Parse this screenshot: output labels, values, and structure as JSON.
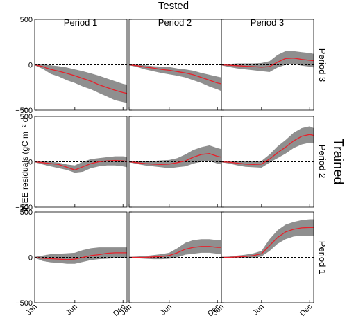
{
  "figure": {
    "top_title": "Tested",
    "side_title": "Trained",
    "ylabel": "iNEE residuals (gC m⁻² d⁻¹)",
    "column_titles": [
      "Period 1",
      "Period 2",
      "Period 3"
    ],
    "row_titles": [
      "Period 3",
      "Period 2",
      "Period 1"
    ],
    "y_tick_labels": [
      "500",
      "0",
      "−500"
    ],
    "x_tick_labels": [
      "Jan",
      "Jun",
      "Dec"
    ],
    "colors": {
      "band": "#8f8f8f",
      "line": "#e8202a",
      "zero": "#000000",
      "frame": "#000000"
    }
  },
  "chart_data": {
    "type": "area",
    "description_units": "x = month of year, y = iNEE residual; mean line with shaded spread band",
    "ylim": [
      -500,
      500
    ],
    "xlim": [
      1,
      12.5
    ],
    "x": [
      1,
      2,
      3,
      4,
      5,
      6,
      7,
      8,
      9,
      10,
      11,
      12,
      12.5
    ],
    "panels": [
      {
        "row": "Period 3",
        "col": "Period 1",
        "mean": [
          0,
          -20,
          -50,
          -70,
          -95,
          -120,
          -150,
          -180,
          -220,
          -250,
          -280,
          -305,
          -315
        ],
        "upper": [
          5,
          5,
          -5,
          -15,
          -30,
          -50,
          -70,
          -95,
          -120,
          -150,
          -180,
          -210,
          -220
        ],
        "lower": [
          -5,
          -45,
          -100,
          -130,
          -170,
          -200,
          -240,
          -270,
          -310,
          -350,
          -390,
          -410,
          -420
        ]
      },
      {
        "row": "Period 3",
        "col": "Period 2",
        "mean": [
          0,
          -10,
          -25,
          -35,
          -50,
          -60,
          -75,
          -90,
          -110,
          -140,
          -170,
          -200,
          -210
        ],
        "upper": [
          5,
          0,
          -5,
          -15,
          -20,
          -25,
          -40,
          -50,
          -65,
          -90,
          -110,
          -130,
          -140
        ],
        "lower": [
          -5,
          -25,
          -50,
          -70,
          -90,
          -105,
          -120,
          -140,
          -170,
          -200,
          -240,
          -270,
          -290
        ]
      },
      {
        "row": "Period 3",
        "col": "Period 3",
        "mean": [
          0,
          -5,
          -10,
          -15,
          -20,
          -25,
          -20,
          30,
          70,
          75,
          60,
          50,
          45
        ],
        "upper": [
          5,
          10,
          15,
          15,
          15,
          20,
          40,
          110,
          150,
          150,
          140,
          130,
          120
        ],
        "lower": [
          -5,
          -25,
          -40,
          -50,
          -60,
          -70,
          -80,
          -30,
          0,
          10,
          -10,
          -20,
          -30
        ]
      },
      {
        "row": "Period 2",
        "col": "Period 1",
        "mean": [
          0,
          -10,
          -20,
          -30,
          -60,
          -90,
          -55,
          -20,
          0,
          10,
          15,
          10,
          5
        ],
        "upper": [
          5,
          5,
          0,
          -10,
          -30,
          -40,
          0,
          30,
          40,
          50,
          60,
          60,
          55
        ],
        "lower": [
          -5,
          -30,
          -50,
          -70,
          -90,
          -120,
          -110,
          -70,
          -50,
          -40,
          -40,
          -50,
          -60
        ]
      },
      {
        "row": "Period 2",
        "col": "Period 2",
        "mean": [
          0,
          -10,
          -20,
          -25,
          -30,
          -25,
          -10,
          10,
          50,
          80,
          90,
          60,
          50
        ],
        "upper": [
          5,
          10,
          10,
          10,
          15,
          20,
          40,
          80,
          130,
          160,
          180,
          150,
          140
        ],
        "lower": [
          -5,
          -25,
          -40,
          -50,
          -60,
          -70,
          -60,
          -50,
          -20,
          0,
          10,
          -20,
          -30
        ]
      },
      {
        "row": "Period 2",
        "col": "Period 3",
        "mean": [
          0,
          -5,
          -15,
          -25,
          -30,
          -25,
          30,
          100,
          160,
          230,
          280,
          300,
          290
        ],
        "upper": [
          5,
          10,
          10,
          5,
          5,
          10,
          80,
          170,
          240,
          320,
          370,
          390,
          370
        ],
        "lower": [
          -5,
          -20,
          -40,
          -55,
          -60,
          -65,
          -10,
          40,
          90,
          150,
          190,
          210,
          200
        ]
      },
      {
        "row": "Period 1",
        "col": "Period 1",
        "mean": [
          0,
          -10,
          -15,
          -20,
          -25,
          -20,
          0,
          20,
          30,
          45,
          50,
          50,
          50
        ],
        "upper": [
          5,
          20,
          35,
          40,
          45,
          50,
          80,
          100,
          110,
          110,
          110,
          110,
          110
        ],
        "lower": [
          -5,
          -40,
          -55,
          -60,
          -70,
          -70,
          -50,
          -30,
          -20,
          -15,
          -10,
          -10,
          -10
        ]
      },
      {
        "row": "Period 1",
        "col": "Period 2",
        "mean": [
          0,
          0,
          0,
          5,
          10,
          20,
          50,
          90,
          110,
          120,
          120,
          110,
          110
        ],
        "upper": [
          5,
          10,
          15,
          25,
          35,
          50,
          100,
          160,
          190,
          200,
          200,
          190,
          190
        ],
        "lower": [
          -5,
          -10,
          -15,
          -20,
          -20,
          -15,
          0,
          30,
          40,
          50,
          50,
          40,
          40
        ]
      },
      {
        "row": "Period 1",
        "col": "Period 3",
        "mean": [
          0,
          0,
          5,
          10,
          20,
          40,
          130,
          220,
          280,
          310,
          325,
          330,
          330
        ],
        "upper": [
          5,
          10,
          20,
          30,
          45,
          70,
          200,
          300,
          360,
          390,
          410,
          420,
          420
        ],
        "lower": [
          -5,
          -10,
          -10,
          -10,
          -5,
          10,
          70,
          150,
          200,
          230,
          240,
          240,
          240
        ]
      }
    ]
  }
}
